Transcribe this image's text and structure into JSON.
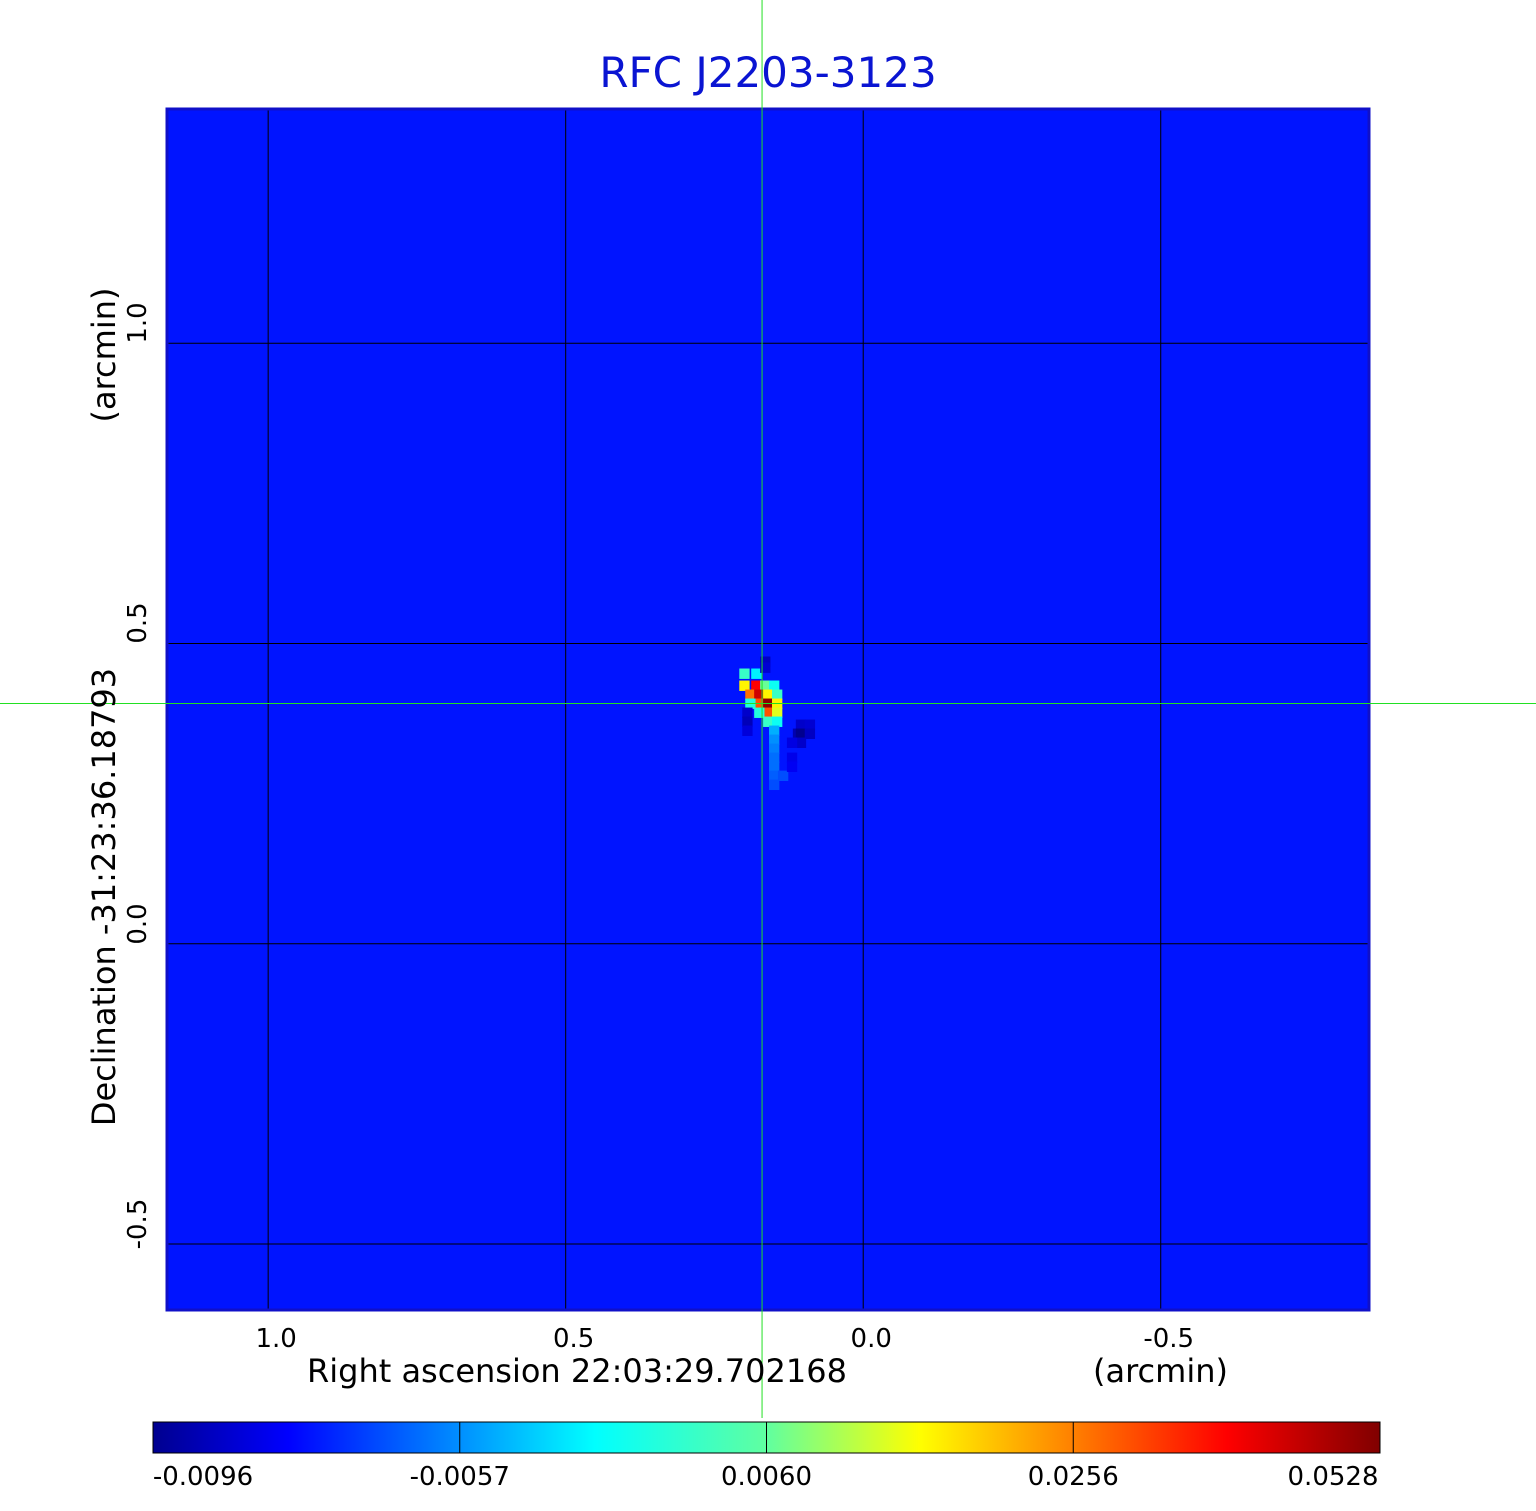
{
  "chart_data": {
    "type": "heatmap",
    "title": "RFC J2203-3123",
    "xlabel": "Right ascension  22:03:29.702168",
    "xunit": "(arcmin)",
    "ylabel": "Declination  -31:23:36.18793",
    "yunit": "(arcmin)",
    "x_ticks": [
      1.0,
      0.5,
      0.0,
      -0.5
    ],
    "y_ticks": [
      1.0,
      0.5,
      0.0,
      -0.5
    ],
    "x_tick_labels": [
      "1.0",
      "0.5",
      "0.0",
      "-0.5"
    ],
    "y_tick_labels": [
      "1.0",
      "0.5",
      "0.0",
      "-0.5"
    ],
    "xlim": [
      1.17,
      -0.85
    ],
    "ylim": [
      -0.61,
      1.39
    ],
    "grid": true,
    "crosshair": {
      "x": 0.17,
      "y": 0.4
    },
    "colormap": "jet",
    "colorbar": {
      "min": -0.0096,
      "max": 0.0528,
      "tick_values": [
        -0.0096,
        -0.0057,
        0.006,
        0.0256,
        0.0528
      ],
      "tick_labels": [
        "-0.0096",
        "-0.0057",
        "0.0060",
        "0.0256",
        "0.0528"
      ],
      "position": "bottom"
    },
    "background_value": -0.0015,
    "pixel_size_arcmin": 0.0165,
    "source_pixels": [
      {
        "x": 0.2,
        "y": 0.45,
        "v": 0.018
      },
      {
        "x": 0.18,
        "y": 0.45,
        "v": 0.012
      },
      {
        "x": 0.2,
        "y": 0.43,
        "v": 0.03
      },
      {
        "x": 0.18,
        "y": 0.43,
        "v": 0.045
      },
      {
        "x": 0.165,
        "y": 0.43,
        "v": 0.022
      },
      {
        "x": 0.15,
        "y": 0.43,
        "v": 0.014
      },
      {
        "x": 0.19,
        "y": 0.415,
        "v": 0.038
      },
      {
        "x": 0.175,
        "y": 0.415,
        "v": 0.048
      },
      {
        "x": 0.16,
        "y": 0.415,
        "v": 0.03
      },
      {
        "x": 0.145,
        "y": 0.415,
        "v": 0.018
      },
      {
        "x": 0.175,
        "y": 0.4,
        "v": 0.04
      },
      {
        "x": 0.16,
        "y": 0.4,
        "v": 0.052
      },
      {
        "x": 0.145,
        "y": 0.4,
        "v": 0.03
      },
      {
        "x": 0.19,
        "y": 0.4,
        "v": 0.016
      },
      {
        "x": 0.16,
        "y": 0.385,
        "v": 0.04
      },
      {
        "x": 0.145,
        "y": 0.385,
        "v": 0.028
      },
      {
        "x": 0.175,
        "y": 0.385,
        "v": 0.016
      },
      {
        "x": 0.16,
        "y": 0.37,
        "v": 0.018
      },
      {
        "x": 0.145,
        "y": 0.37,
        "v": 0.014
      },
      {
        "x": 0.165,
        "y": 0.47,
        "v": -0.0065
      },
      {
        "x": 0.165,
        "y": 0.46,
        "v": -0.0055
      },
      {
        "x": 0.195,
        "y": 0.385,
        "v": -0.006
      },
      {
        "x": 0.195,
        "y": 0.37,
        "v": -0.007
      },
      {
        "x": 0.195,
        "y": 0.355,
        "v": -0.005
      },
      {
        "x": 0.105,
        "y": 0.365,
        "v": -0.006
      },
      {
        "x": 0.09,
        "y": 0.365,
        "v": -0.0055
      },
      {
        "x": 0.11,
        "y": 0.35,
        "v": -0.0075
      },
      {
        "x": 0.105,
        "y": 0.35,
        "v": -0.0096
      },
      {
        "x": 0.09,
        "y": 0.35,
        "v": -0.0065
      },
      {
        "x": 0.105,
        "y": 0.335,
        "v": -0.006
      },
      {
        "x": 0.12,
        "y": 0.335,
        "v": -0.0045
      },
      {
        "x": 0.15,
        "y": 0.355,
        "v": 0.008
      },
      {
        "x": 0.15,
        "y": 0.34,
        "v": 0.006
      },
      {
        "x": 0.15,
        "y": 0.325,
        "v": 0.005
      },
      {
        "x": 0.15,
        "y": 0.31,
        "v": 0.004
      },
      {
        "x": 0.15,
        "y": 0.295,
        "v": 0.004
      },
      {
        "x": 0.15,
        "y": 0.28,
        "v": 0.003
      },
      {
        "x": 0.135,
        "y": 0.28,
        "v": 0.002
      },
      {
        "x": 0.15,
        "y": 0.265,
        "v": 0.002
      },
      {
        "x": 0.12,
        "y": 0.31,
        "v": -0.004
      },
      {
        "x": 0.12,
        "y": 0.295,
        "v": -0.0035
      }
    ]
  }
}
